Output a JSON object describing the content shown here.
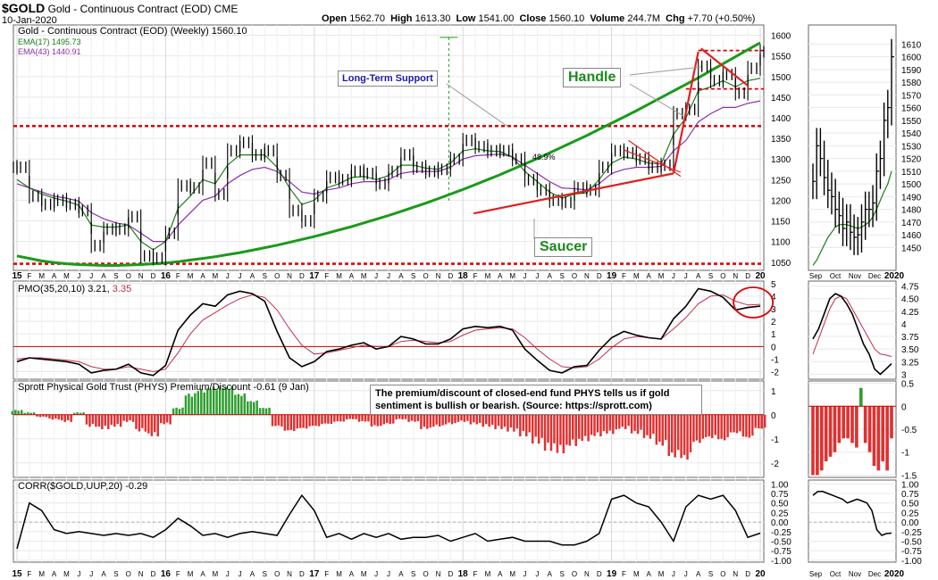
{
  "header": {
    "symbol": "$GOLD",
    "name": "Gold - Continuous Contract (EOD)",
    "exchange": "CME",
    "date": "10-Jan-2020",
    "open_label": "Open",
    "open": "1562.70",
    "high_label": "High",
    "high": "1613.30",
    "low_label": "Low",
    "low": "1541.00",
    "close_label": "Close",
    "close": "1560.10",
    "volume_label": "Volume",
    "volume": "244.7M",
    "chg_label": "Chg",
    "chg": "+7.70 (+0.50%)"
  },
  "colors": {
    "price": "#000000",
    "ema17": "#1a7a1a",
    "ema43": "#8b2fa8",
    "support": "#e00000",
    "saucer": "#1a9a1a",
    "trend": "#e02020",
    "hist_pos": "#2e9e2e",
    "hist_neg": "#e03030",
    "pmo_signal": "#c0304a"
  },
  "annotations": {
    "long_term_support": "Long-Term Support",
    "handle": "Handle",
    "saucer": "Saucer",
    "rally_pct": "48.9%"
  },
  "note": "The premium/discount of closed-end fund PHYS tells us if gold sentiment is bullish or bearish. (Source: https://sprott.com)",
  "x_axis_labels": [
    "15",
    "F",
    "M",
    "A",
    "M",
    "J",
    "J",
    "A",
    "S",
    "O",
    "N",
    "D",
    "16",
    "F",
    "M",
    "A",
    "M",
    "J",
    "J",
    "A",
    "S",
    "O",
    "N",
    "D",
    "17",
    "F",
    "M",
    "A",
    "M",
    "J",
    "J",
    "A",
    "S",
    "O",
    "N",
    "D",
    "18",
    "F",
    "M",
    "A",
    "M",
    "J",
    "J",
    "A",
    "S",
    "O",
    "N",
    "D",
    "19",
    "F",
    "M",
    "A",
    "M",
    "J",
    "J",
    "A",
    "S",
    "O",
    "N",
    "D",
    "20"
  ],
  "daily_x_axis_labels": [
    "Sep",
    "Oct",
    "Nov",
    "Dec",
    "2020"
  ],
  "chart_data": [
    {
      "type": "line",
      "panel": "price",
      "title": "Gold - Continuous Contract (EOD) (Weekly) 1560.10",
      "ylim": [
        1030,
        1625
      ],
      "yticks": [
        1050,
        1100,
        1150,
        1200,
        1250,
        1300,
        1350,
        1400,
        1450,
        1500,
        1550,
        1600
      ],
      "x": [
        "2015-01",
        "2015-02",
        "2015-03",
        "2015-04",
        "2015-05",
        "2015-06",
        "2015-07",
        "2015-08",
        "2015-09",
        "2015-10",
        "2015-11",
        "2015-12",
        "2016-01",
        "2016-02",
        "2016-03",
        "2016-04",
        "2016-05",
        "2016-06",
        "2016-07",
        "2016-08",
        "2016-09",
        "2016-10",
        "2016-11",
        "2016-12",
        "2017-01",
        "2017-02",
        "2017-03",
        "2017-04",
        "2017-05",
        "2017-06",
        "2017-07",
        "2017-08",
        "2017-09",
        "2017-10",
        "2017-11",
        "2017-12",
        "2018-01",
        "2018-02",
        "2018-03",
        "2018-04",
        "2018-05",
        "2018-06",
        "2018-07",
        "2018-08",
        "2018-09",
        "2018-10",
        "2018-11",
        "2018-12",
        "2019-01",
        "2019-02",
        "2019-03",
        "2019-04",
        "2019-05",
        "2019-06",
        "2019-07",
        "2019-08",
        "2019-09",
        "2019-10",
        "2019-11",
        "2019-12",
        "2020-01"
      ],
      "series": [
        {
          "name": "Gold - Continuous Contract (EOD) (Weekly) 1560.10",
          "values": [
            1280,
            1210,
            1190,
            1200,
            1190,
            1175,
            1090,
            1130,
            1130,
            1160,
            1065,
            1060,
            1120,
            1235,
            1230,
            1290,
            1215,
            1320,
            1340,
            1310,
            1320,
            1260,
            1175,
            1150,
            1210,
            1255,
            1250,
            1270,
            1265,
            1240,
            1270,
            1310,
            1280,
            1270,
            1275,
            1300,
            1345,
            1330,
            1320,
            1320,
            1300,
            1250,
            1225,
            1200,
            1195,
            1230,
            1225,
            1280,
            1320,
            1315,
            1300,
            1280,
            1285,
            1410,
            1420,
            1525,
            1490,
            1505,
            1460,
            1520,
            1560
          ]
        },
        {
          "name": "EMA(17) 1495.73",
          "values": [
            1250,
            1230,
            1215,
            1205,
            1198,
            1188,
            1140,
            1135,
            1135,
            1140,
            1100,
            1080,
            1100,
            1180,
            1210,
            1250,
            1240,
            1285,
            1310,
            1310,
            1310,
            1280,
            1230,
            1190,
            1200,
            1230,
            1240,
            1255,
            1258,
            1250,
            1260,
            1285,
            1285,
            1278,
            1275,
            1290,
            1320,
            1325,
            1320,
            1318,
            1305,
            1270,
            1245,
            1220,
            1205,
            1215,
            1218,
            1250,
            1290,
            1305,
            1300,
            1290,
            1288,
            1360,
            1400,
            1465,
            1475,
            1490,
            1475,
            1490,
            1495.73
          ]
        },
        {
          "name": "EMA(43) 1440.91",
          "values": [
            1240,
            1230,
            1220,
            1210,
            1205,
            1198,
            1170,
            1155,
            1145,
            1140,
            1120,
            1100,
            1100,
            1140,
            1170,
            1200,
            1210,
            1240,
            1260,
            1275,
            1280,
            1270,
            1245,
            1220,
            1215,
            1225,
            1230,
            1240,
            1245,
            1245,
            1250,
            1265,
            1270,
            1270,
            1270,
            1280,
            1300,
            1308,
            1310,
            1312,
            1305,
            1285,
            1265,
            1245,
            1230,
            1228,
            1225,
            1240,
            1265,
            1275,
            1280,
            1280,
            1282,
            1320,
            1345,
            1390,
            1410,
            1425,
            1425,
            1435,
            1440.91
          ]
        },
        {
          "name": "Saucer",
          "values": [
            1065,
            1059,
            1053,
            1049,
            1046,
            1044,
            1043,
            1042,
            1042,
            1043,
            1044,
            1046,
            1048,
            1051,
            1055,
            1059,
            1063,
            1068,
            1073,
            1079,
            1085,
            1091,
            1098,
            1105,
            1112,
            1120,
            1128,
            1136,
            1145,
            1154,
            1163,
            1173,
            1183,
            1193,
            1204,
            1215,
            1226,
            1238,
            1250,
            1262,
            1275,
            1288,
            1301,
            1315,
            1329,
            1343,
            1357,
            1372,
            1387,
            1402,
            1417,
            1433,
            1449,
            1465,
            1481,
            1497,
            1514,
            1531,
            1548,
            1565,
            1582
          ]
        }
      ],
      "levels": [
        1380,
        1046
      ]
    },
    {
      "type": "line",
      "panel": "pmo",
      "title": "PMO(35,20,10) 3.21, 3.35",
      "ylim": [
        -2.6,
        5.2
      ],
      "yticks": [
        -2,
        -1,
        0,
        1,
        2,
        3,
        4,
        5
      ],
      "series": [
        {
          "name": "PMO(35,20,10) 3.21",
          "values": [
            -1.2,
            -0.9,
            -1.0,
            -1.1,
            -1.2,
            -1.4,
            -2.1,
            -1.9,
            -1.8,
            -1.4,
            -2.1,
            -2.3,
            -1.5,
            1.3,
            2.5,
            3.4,
            3.2,
            4.1,
            4.4,
            4.2,
            3.6,
            1.2,
            -0.9,
            -1.6,
            -1.2,
            -0.4,
            -0.2,
            0.1,
            0.3,
            -0.2,
            0.0,
            0.8,
            0.6,
            0.2,
            0.2,
            0.6,
            1.4,
            1.6,
            1.5,
            1.6,
            1.3,
            -0.2,
            -1.1,
            -1.9,
            -2.1,
            -1.6,
            -1.5,
            -0.3,
            0.7,
            1.2,
            0.9,
            0.7,
            0.6,
            2.2,
            3.2,
            4.6,
            4.4,
            3.9,
            2.9,
            3.1,
            3.21
          ]
        },
        {
          "name": "3.35",
          "values": [
            -1.0,
            -0.9,
            -0.9,
            -1.0,
            -1.1,
            -1.2,
            -1.6,
            -1.8,
            -1.8,
            -1.6,
            -1.8,
            -2.0,
            -1.8,
            -0.5,
            1.0,
            2.1,
            2.7,
            3.3,
            3.8,
            4.1,
            3.9,
            2.9,
            1.4,
            0.1,
            -0.6,
            -0.5,
            -0.3,
            -0.1,
            0.1,
            0.0,
            0.0,
            0.4,
            0.5,
            0.4,
            0.3,
            0.4,
            0.9,
            1.3,
            1.4,
            1.5,
            1.4,
            0.7,
            -0.2,
            -1.0,
            -1.6,
            -1.7,
            -1.6,
            -1.0,
            -0.1,
            0.6,
            0.8,
            0.7,
            0.6,
            1.4,
            2.3,
            3.4,
            4.0,
            4.1,
            3.6,
            3.3,
            3.35
          ]
        }
      ],
      "daily_ylim": [
        2.9,
        4.85
      ],
      "daily_yticks": [
        3.0,
        3.25,
        3.5,
        3.75,
        4.0,
        4.25,
        4.5,
        4.75
      ]
    },
    {
      "type": "bar",
      "panel": "phys",
      "title": "Sprott Physical Gold Trust (PHYS) Premium/Discount -0.61 (9 Jan)",
      "ylim": [
        -2.6,
        1.4
      ],
      "yticks": [
        -2,
        -1,
        0,
        1
      ],
      "values": [
        0.2,
        0.1,
        -0.1,
        -0.2,
        -0.3,
        0.1,
        -0.5,
        -0.6,
        -0.5,
        -0.3,
        -0.7,
        -0.9,
        -0.4,
        0.3,
        0.9,
        1.1,
        1.2,
        1.2,
        0.9,
        0.6,
        0.3,
        -0.5,
        -0.7,
        -0.6,
        -0.5,
        -0.4,
        -0.3,
        -0.2,
        -0.3,
        -0.5,
        -0.4,
        -0.2,
        -0.3,
        -0.6,
        -0.5,
        -0.4,
        -0.3,
        -0.4,
        -0.5,
        -0.6,
        -0.7,
        -0.9,
        -1.2,
        -1.5,
        -1.6,
        -1.3,
        -1.1,
        -0.9,
        -0.8,
        -0.6,
        -0.8,
        -1.0,
        -1.3,
        -1.8,
        -1.9,
        -1.2,
        -1.0,
        -1.1,
        -0.8,
        -1.0,
        -0.61
      ],
      "daily_ylim": [
        -1.55,
        0.55
      ],
      "daily_yticks": [
        -1.5,
        -1.0,
        -0.5,
        0.0,
        0.5
      ]
    },
    {
      "type": "line",
      "panel": "corr",
      "title": "CORR($GOLD,UUP,20) -0.29",
      "ylim": [
        -1.05,
        1.1
      ],
      "yticks": [
        -1.0,
        -0.75,
        -0.5,
        -0.25,
        0.0,
        0.25,
        0.5,
        0.75,
        1.0
      ],
      "series": [
        {
          "name": "CORR($GOLD,UUP,20) -0.29",
          "values": [
            -0.7,
            0.5,
            0.3,
            -0.2,
            -0.3,
            -0.25,
            -0.3,
            -0.35,
            -0.3,
            -0.35,
            -0.3,
            -0.4,
            -0.2,
            0.1,
            -0.1,
            -0.35,
            -0.3,
            -0.4,
            -0.3,
            -0.25,
            -0.3,
            -0.35,
            0.2,
            0.7,
            0.3,
            -0.4,
            -0.3,
            -0.45,
            -0.3,
            -0.4,
            -0.3,
            -0.45,
            -0.4,
            -0.4,
            -0.35,
            -0.5,
            -0.4,
            -0.3,
            -0.5,
            -0.45,
            -0.4,
            -0.5,
            -0.5,
            -0.5,
            -0.6,
            -0.6,
            -0.5,
            -0.3,
            0.6,
            0.7,
            0.5,
            0.4,
            0.0,
            -0.5,
            0.4,
            0.7,
            0.6,
            0.7,
            0.3,
            -0.4,
            -0.29
          ]
        }
      ],
      "daily_ylim": [
        -1.05,
        1.1
      ],
      "daily_yticks": [
        -1.0,
        -0.75,
        -0.5,
        -0.25,
        0.0,
        0.25,
        0.5,
        0.75,
        1.0
      ]
    }
  ],
  "daily_chart_data": {
    "price": {
      "ylim": [
        1432,
        1625
      ],
      "yticks": [
        1450,
        1460,
        1470,
        1480,
        1490,
        1500,
        1510,
        1520,
        1530,
        1540,
        1550,
        1560,
        1570,
        1580,
        1590,
        1600,
        1610
      ],
      "close": [
        1502,
        1530,
        1520,
        1505,
        1495,
        1490,
        1480,
        1475,
        1465,
        1470,
        1462,
        1458,
        1460,
        1470,
        1480,
        1480,
        1485,
        1510,
        1520,
        1550,
        1560,
        1600
      ],
      "ema": [
        1436,
        1440,
        1446,
        1452,
        1458,
        1462,
        1466,
        1468,
        1468,
        1468,
        1467,
        1466,
        1465,
        1466,
        1468,
        1470,
        1474,
        1480,
        1487,
        1494,
        1500,
        1510
      ]
    },
    "pmo": {
      "a": [
        3.7,
        3.9,
        4.2,
        4.5,
        4.6,
        4.55,
        4.4,
        4.2,
        3.9,
        3.6,
        3.4,
        3.1,
        3.0,
        3.1,
        3.21
      ],
      "b": [
        3.4,
        3.7,
        4.0,
        4.3,
        4.5,
        4.55,
        4.5,
        4.3,
        4.1,
        3.9,
        3.7,
        3.5,
        3.4,
        3.38,
        3.35
      ]
    },
    "phys": [
      -1.5,
      -1.5,
      -1.4,
      -1.2,
      -1.1,
      -1.0,
      -0.8,
      -0.7,
      -0.7,
      -0.8,
      -0.9,
      0.4,
      -0.8,
      -1.0,
      -1.3,
      -1.4,
      -1.2,
      -1.4,
      -0.7
    ],
    "corr": [
      0.7,
      0.8,
      0.8,
      0.75,
      0.7,
      0.65,
      0.6,
      0.5,
      0.55,
      0.6,
      0.55,
      0.5,
      0.3,
      -0.2,
      -0.35,
      -0.3,
      -0.29
    ]
  }
}
